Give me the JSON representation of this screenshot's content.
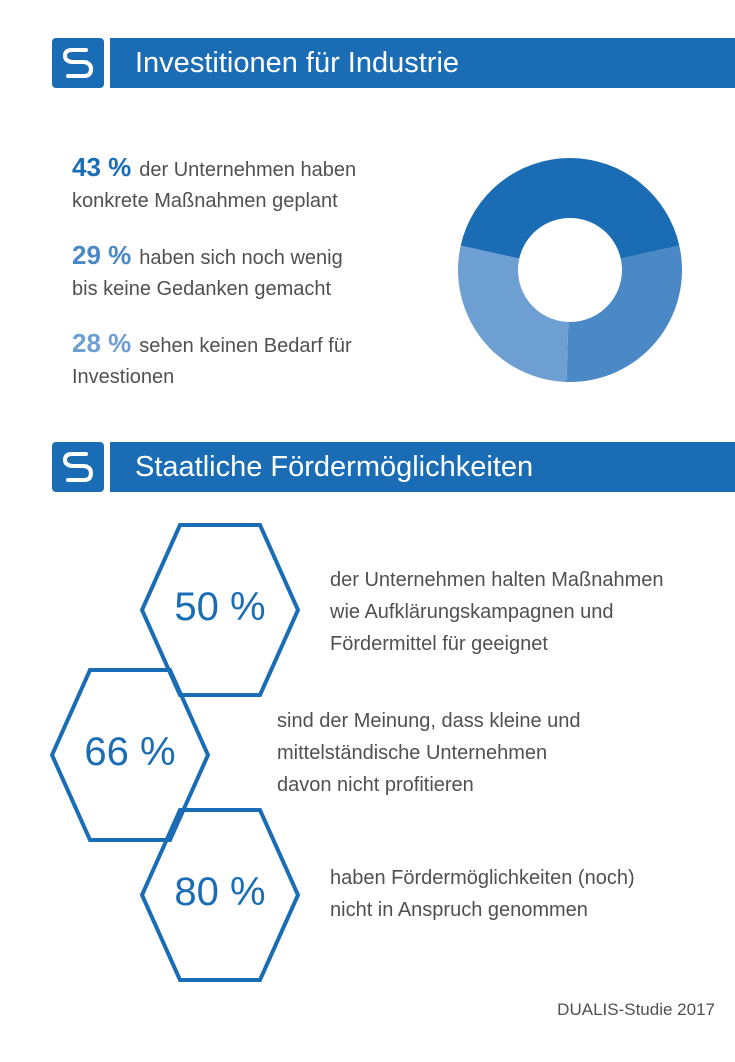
{
  "section1": {
    "title": "Investitionen für Industrie"
  },
  "section2": {
    "title": "Staatliche Fördermöglichkeiten"
  },
  "colors": {
    "banner": "#1a6db4",
    "dark": "#1a6db4",
    "mid": "#4a88c6",
    "light": "#6d9fd2"
  },
  "stats": [
    {
      "pct": "43 %",
      "line1": "der Unternehmen haben",
      "line2": "konkrete Maßnahmen geplant",
      "color": "#1a6db4"
    },
    {
      "pct": "29 %",
      "line1": "haben sich noch wenig",
      "line2": "bis keine Gedanken gemacht",
      "color": "#4a88c6"
    },
    {
      "pct": "28 %",
      "line1": "sehen keinen Bedarf für",
      "line2": "Investionen",
      "color": "#6d9fd2"
    }
  ],
  "chart_data": {
    "type": "pie",
    "categories": [
      "konkrete Maßnahmen geplant",
      "noch wenig bis keine Gedanken",
      "keinen Bedarf"
    ],
    "values": [
      43,
      29,
      28
    ],
    "colors": [
      "#1a6db4",
      "#4a88c6",
      "#6d9fd2"
    ],
    "donut": true
  },
  "hexes": [
    {
      "value": "50 %",
      "text": "der Unternehmen halten Maßnahmen\nwie Aufklärungskampagnen und\nFördermittel für geeignet"
    },
    {
      "value": "66 %",
      "text": "sind der Meinung, dass kleine und\nmittelständische Unternehmen\ndavon nicht profitieren"
    },
    {
      "value": "80 %",
      "text": "haben Fördermöglichkeiten (noch)\nnicht in Anspruch genommen"
    }
  ],
  "footer": "DUALIS-Studie 2017"
}
